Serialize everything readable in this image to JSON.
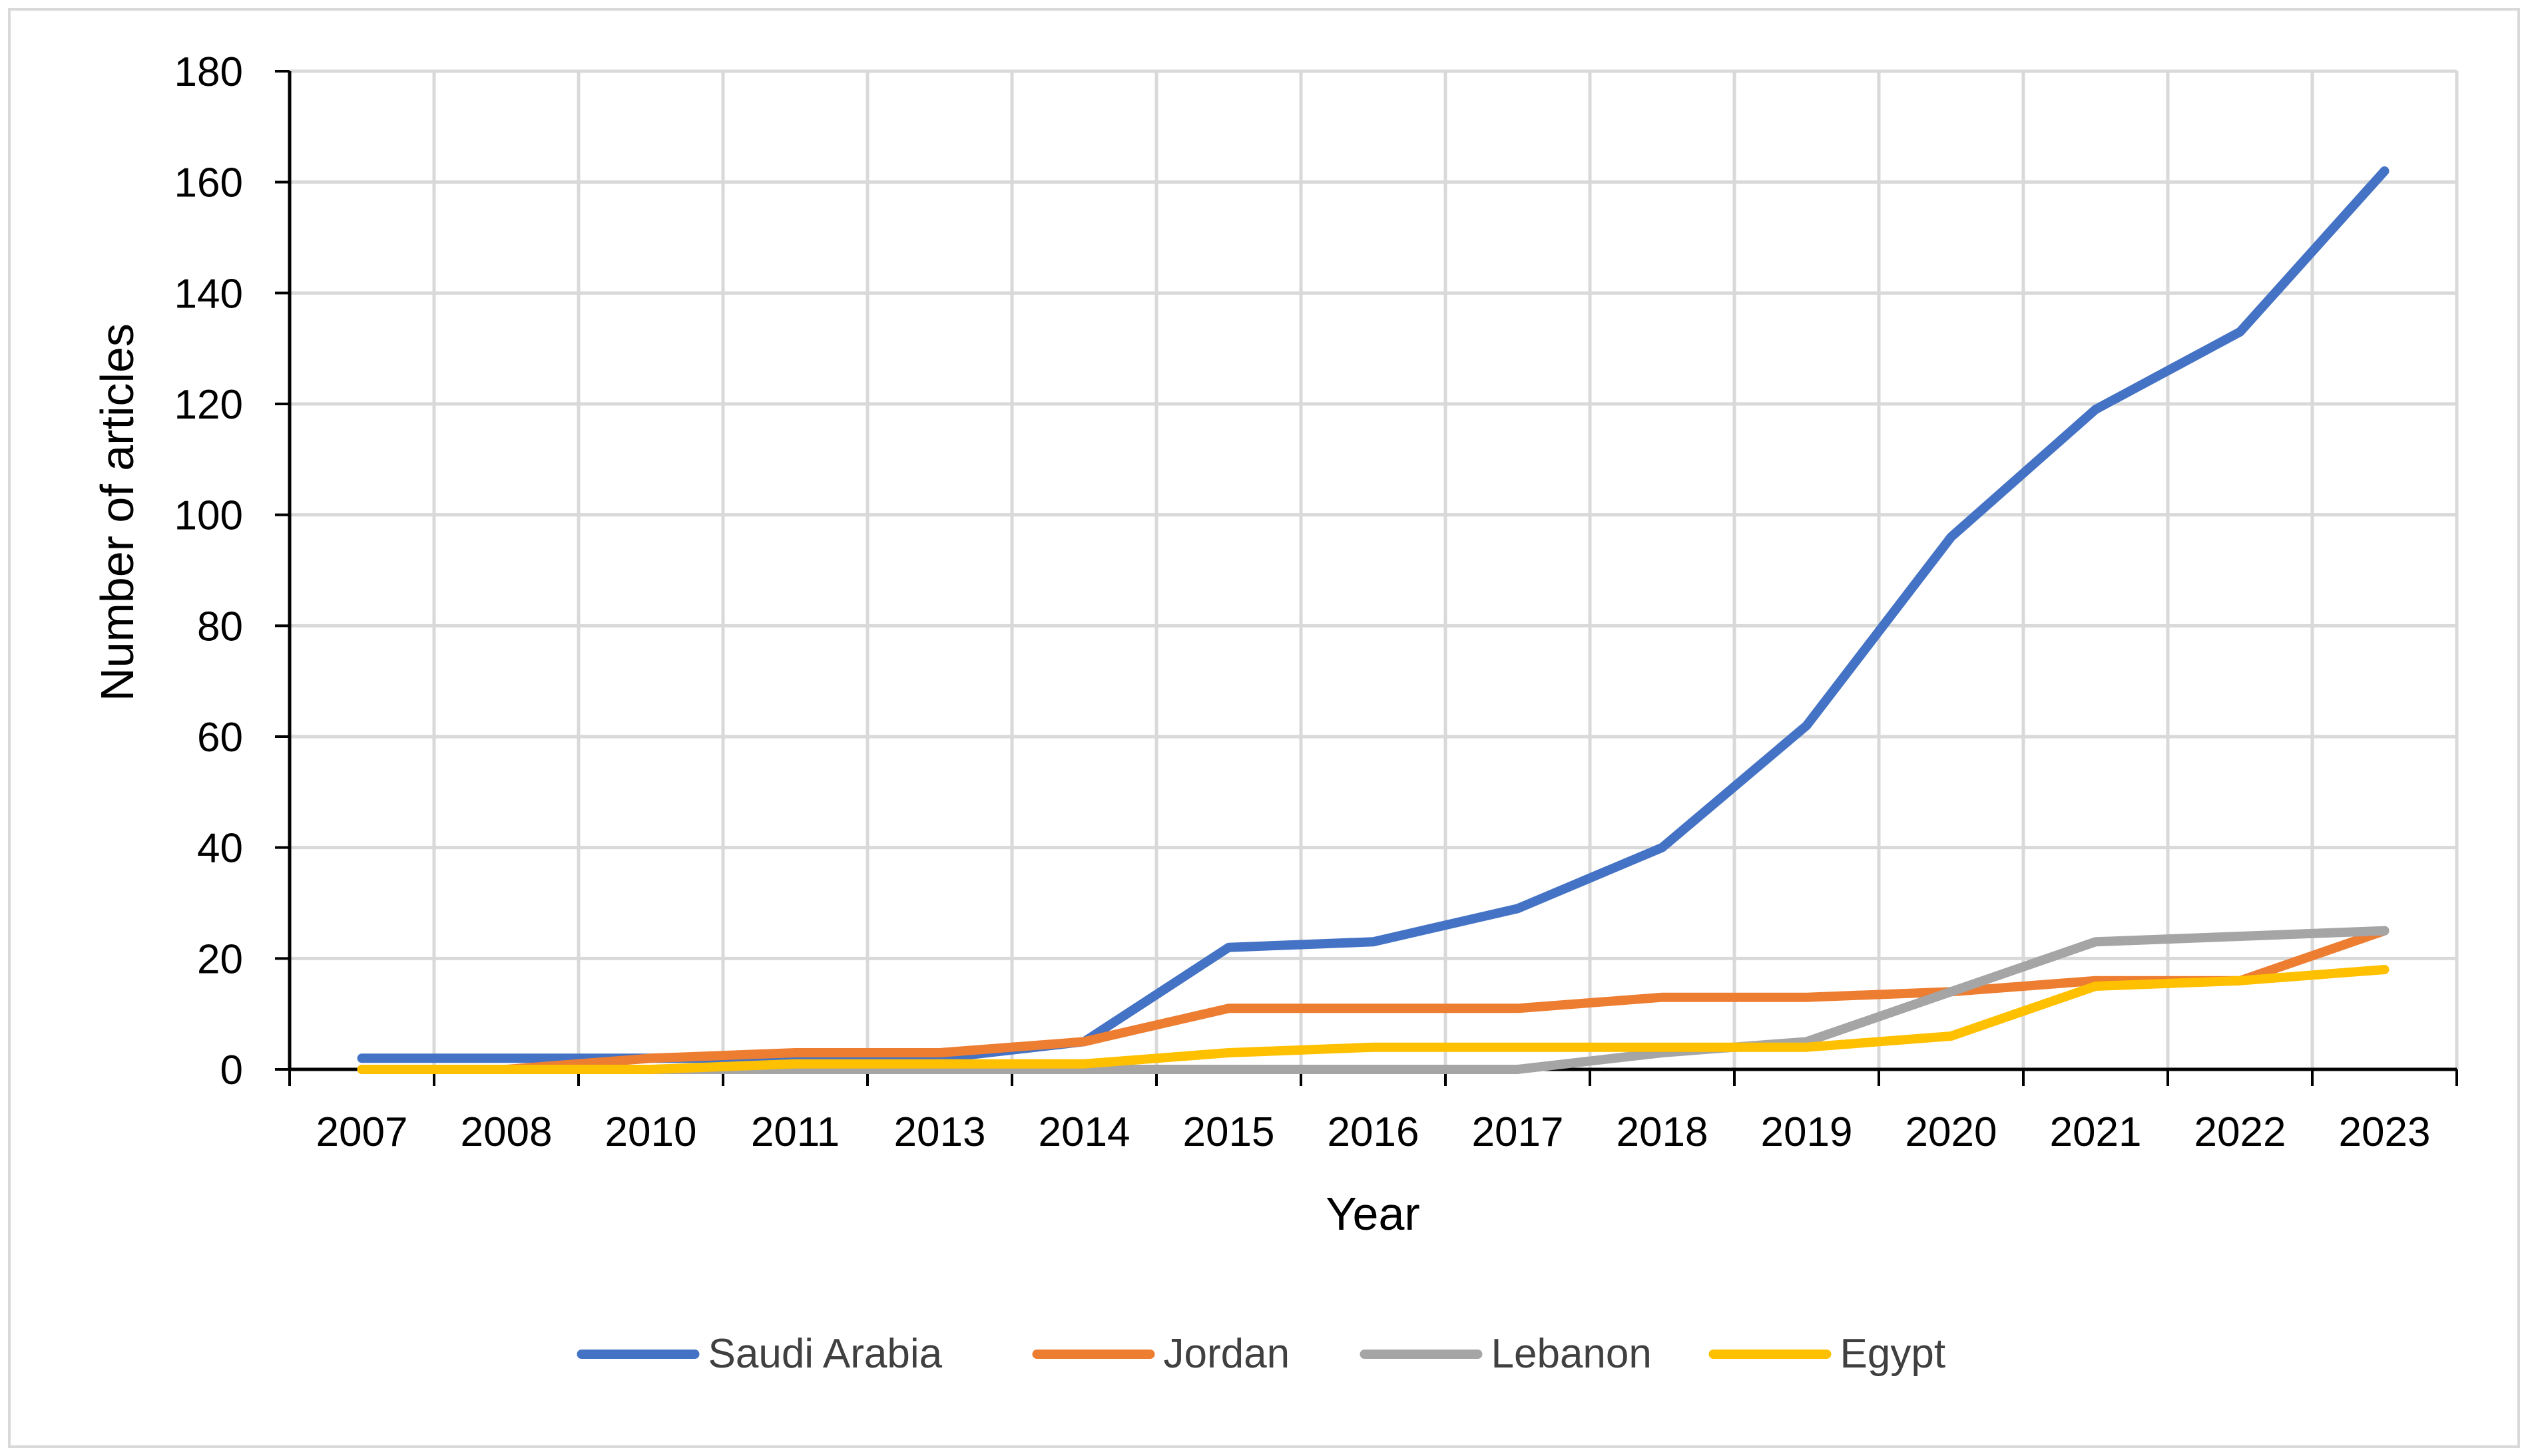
{
  "chart_data": {
    "type": "line",
    "title": "",
    "xlabel": "Year",
    "ylabel": "Number of articles",
    "ylim": [
      0,
      180
    ],
    "yticks": [
      0,
      20,
      40,
      60,
      80,
      100,
      120,
      140,
      160,
      180
    ],
    "ytick_labels": [
      "0",
      "20",
      "40",
      "60",
      "80",
      "100",
      "120",
      "140",
      "160",
      "180"
    ],
    "grid": true,
    "legend_position": "bottom",
    "categories": [
      "2007",
      "2008",
      "2010",
      "2011",
      "2013",
      "2014",
      "2015",
      "2016",
      "2017",
      "2018",
      "2019",
      "2020",
      "2021",
      "2022",
      "2023"
    ],
    "series": [
      {
        "name": "Saudi Arabia",
        "color": "#4472C4",
        "values": [
          2,
          2,
          2,
          2,
          2,
          5,
          22,
          23,
          29,
          40,
          62,
          96,
          119,
          133,
          162
        ]
      },
      {
        "name": "Jordan",
        "color": "#ED7D31",
        "values": [
          0,
          0,
          2,
          3,
          3,
          5,
          11,
          11,
          11,
          13,
          13,
          14,
          16,
          16,
          25
        ]
      },
      {
        "name": "Lebanon",
        "color": "#A5A5A5",
        "values": [
          0,
          0,
          0,
          0,
          0,
          0,
          0,
          0,
          0,
          3,
          5,
          14,
          23,
          24,
          25
        ]
      },
      {
        "name": "Egypt",
        "color": "#FFC000",
        "values": [
          0,
          0,
          0,
          1,
          1,
          1,
          3,
          4,
          4,
          4,
          4,
          6,
          15,
          16,
          18
        ]
      }
    ]
  }
}
